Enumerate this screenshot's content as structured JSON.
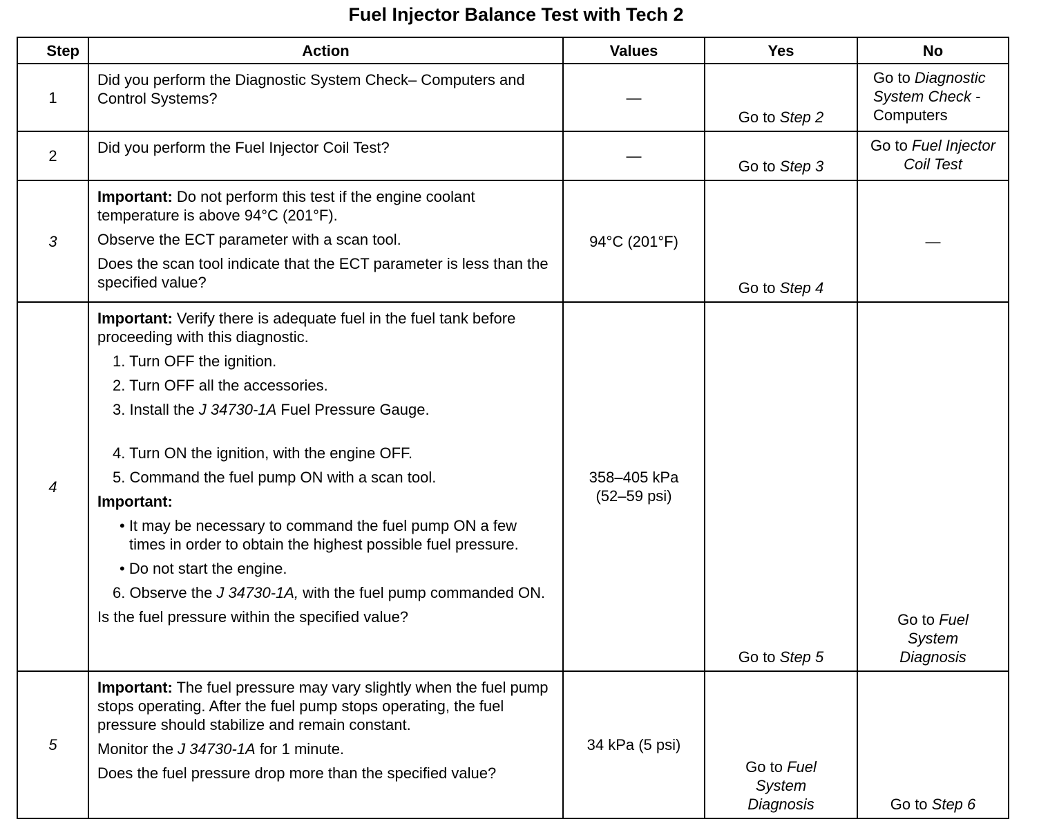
{
  "title": "Fuel Injector Balance Test with Tech 2",
  "headers": [
    "Step",
    "Action",
    "Values",
    "Yes",
    "No"
  ],
  "rows": [
    {
      "step": "1",
      "action": [
        [
          {
            "t": "Did you perform the Diagnostic System Check– Computers and Control Systems?"
          }
        ]
      ],
      "values": "—",
      "yes": [
        {
          "t": "Go to "
        },
        {
          "t": "Step 2",
          "i": true
        }
      ],
      "no": [
        {
          "t": "Go to "
        },
        {
          "t": "Diagnostic System Check -",
          "i": true
        },
        {
          "t": " Computers"
        }
      ]
    },
    {
      "step": "2",
      "action": [
        [
          {
            "t": "Did you perform the Fuel Injector Coil Test?"
          }
        ]
      ],
      "values": "—",
      "yes": [
        {
          "t": "Go to "
        },
        {
          "t": "Step 3",
          "i": true
        }
      ],
      "no": [
        {
          "t": "Go to "
        },
        {
          "t": "Fuel Injector Coil Test",
          "i": true
        }
      ]
    },
    {
      "step": "3",
      "action": [
        [
          {
            "t": "Important:",
            "b": true
          },
          {
            "t": " Do not perform this test if the engine coolant temperature is above 94°C (201°F)."
          }
        ],
        [
          {
            "t": "Observe the ECT parameter with a scan tool."
          }
        ],
        [
          {
            "t": "Does the scan tool indicate that the ECT parameter is less than the specified value?"
          }
        ]
      ],
      "values": "94°C (201°F)",
      "yes": [
        {
          "t": "Go to "
        },
        {
          "t": "Step 4",
          "i": true
        }
      ],
      "no": [
        {
          "t": "—"
        }
      ]
    },
    {
      "step": "4",
      "action": [
        [
          {
            "t": "Important:",
            "b": true
          },
          {
            "t": " Verify there is adequate fuel in the fuel tank before proceeding with this diagnostic."
          }
        ],
        [
          {
            "t": "1.  Turn OFF the ignition."
          }
        ],
        [
          {
            "t": "2.  Turn OFF all the accessories."
          }
        ],
        [
          {
            "t": "3.  Install the "
          },
          {
            "t": "J 34730-1A",
            "i": true
          },
          {
            "t": " Fuel Pressure Gauge."
          }
        ],
        [
          {
            "t": "4.  Turn ON the ignition, with the engine OFF."
          }
        ],
        [
          {
            "t": "5.  Command the fuel pump ON with a scan tool."
          }
        ],
        [
          {
            "t": "Important:",
            "b": true
          }
        ],
        [
          {
            "t": "•  It may be necessary to command the fuel pump ON a few times in order to obtain the highest possible fuel pressure."
          }
        ],
        [
          {
            "t": "•  Do not start the engine."
          }
        ],
        [
          {
            "t": "6.  Observe the "
          },
          {
            "t": "J 34730-1A,",
            "i": true
          },
          {
            "t": " with the fuel pump commanded ON."
          }
        ],
        [
          {
            "t": "Is the fuel pressure within the specified value?"
          }
        ]
      ],
      "values": "358–405 kPa (52–59 psi)",
      "yes": [
        {
          "t": "Go to "
        },
        {
          "t": "Step 5",
          "i": true
        }
      ],
      "no": [
        {
          "t": "Go to "
        },
        {
          "t": "Fuel System Diagnosis",
          "i": true
        }
      ]
    },
    {
      "step": "5",
      "action": [
        [
          {
            "t": "Important:",
            "b": true
          },
          {
            "t": " The fuel pressure may vary slightly when the fuel pump stops operating. After the fuel pump stops operating, the fuel pressure should stabilize and remain constant."
          }
        ],
        [
          {
            "t": "Monitor the "
          },
          {
            "t": "J 34730-1A",
            "i": true
          },
          {
            "t": " for 1 minute."
          }
        ],
        [
          {
            "t": "Does the fuel pressure drop more than the specified value?"
          }
        ]
      ],
      "values": "34 kPa (5 psi)",
      "yes": [
        {
          "t": "Go to "
        },
        {
          "t": "Fuel System Diagnosis",
          "i": true
        }
      ],
      "no": [
        {
          "t": "Go to "
        },
        {
          "t": "Step 6",
          "i": true
        }
      ]
    }
  ]
}
